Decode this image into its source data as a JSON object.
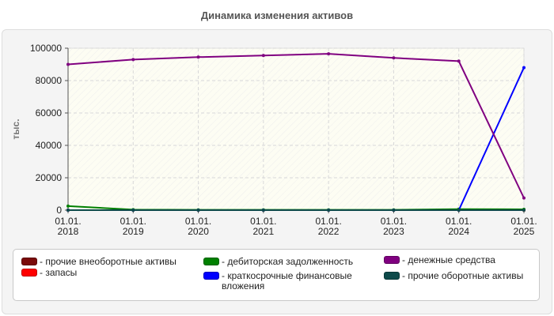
{
  "chart_data": {
    "type": "line",
    "title": "Динамика изменения активов",
    "ylabel": "тыс.",
    "xlabel": "",
    "ylim": [
      0,
      100000
    ],
    "yticks": [
      0,
      20000,
      40000,
      60000,
      80000,
      100000
    ],
    "categories": [
      [
        "01.01.",
        "2018"
      ],
      [
        "01.01.",
        "2019"
      ],
      [
        "01.01.",
        "2020"
      ],
      [
        "01.01.",
        "2021"
      ],
      [
        "01.01.",
        "2022"
      ],
      [
        "01.01.",
        "2023"
      ],
      [
        "01.01.",
        "2024"
      ],
      [
        "01.01.",
        "2025"
      ]
    ],
    "grid": true,
    "legend_position": "bottom",
    "series": [
      {
        "name": "прочие внеоборотные активы",
        "color": "#7a0a0a",
        "values": [
          0,
          0,
          0,
          0,
          0,
          0,
          0,
          0
        ]
      },
      {
        "name": "запасы",
        "color": "#ff0000",
        "values": [
          0,
          0,
          0,
          0,
          0,
          0,
          0,
          0
        ]
      },
      {
        "name": "дебиторская задолженность",
        "color": "#008000",
        "values": [
          2500,
          300,
          200,
          200,
          200,
          200,
          600,
          500
        ]
      },
      {
        "name": "краткосрочные финансовые вложения",
        "color": "#0000ff",
        "values": [
          0,
          0,
          0,
          0,
          0,
          0,
          0,
          88000
        ]
      },
      {
        "name": "денежные средства",
        "color": "#800080",
        "values": [
          90000,
          93000,
          94500,
          95500,
          96500,
          94000,
          92000,
          7500
        ]
      },
      {
        "name": "прочие оборотные активы",
        "color": "#0d4a4a",
        "values": [
          0,
          0,
          0,
          0,
          0,
          0,
          0,
          0
        ]
      }
    ]
  }
}
